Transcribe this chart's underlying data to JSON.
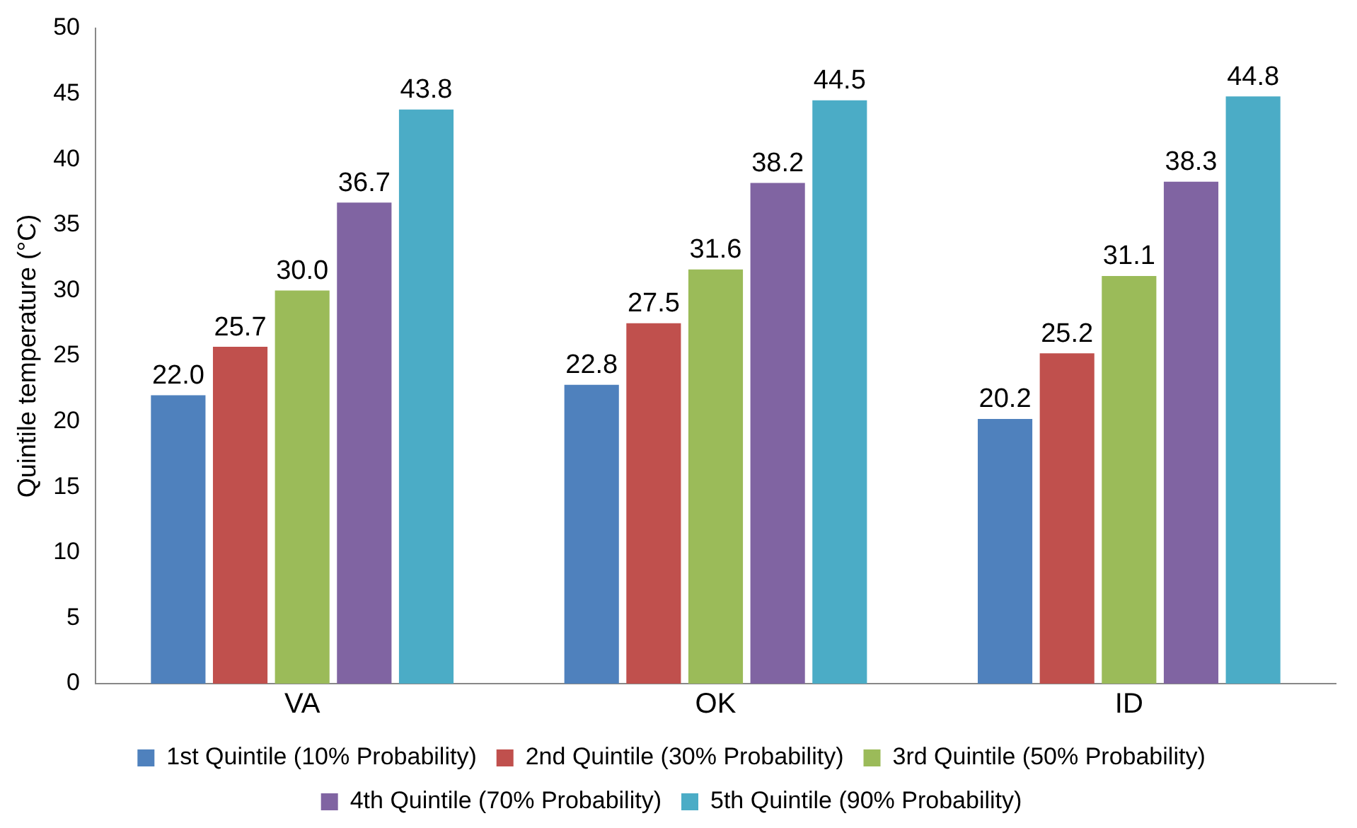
{
  "chart_data": {
    "type": "bar",
    "ylabel": "Quintile temperature (°C)",
    "categories": [
      "VA",
      "OK",
      "ID"
    ],
    "series": [
      {
        "name": "1st Quintile (10% Probability)",
        "color": "#4f81bd",
        "values": [
          22.0,
          22.8,
          20.2
        ],
        "value_labels": [
          "22.0",
          "22.8",
          "20.2"
        ]
      },
      {
        "name": "2nd Quintile (30% Probability)",
        "color": "#c0504d",
        "values": [
          25.7,
          27.5,
          25.2
        ],
        "value_labels": [
          "25.7",
          "27.5",
          "25.2"
        ]
      },
      {
        "name": "3rd Quintile (50% Probability)",
        "color": "#9bbb59",
        "values": [
          30.0,
          31.6,
          31.1
        ],
        "value_labels": [
          "30.0",
          "31.6",
          "31.1"
        ]
      },
      {
        "name": "4th Quintile (70% Probability)",
        "color": "#8064a2",
        "values": [
          36.7,
          38.2,
          38.3
        ],
        "value_labels": [
          "36.7",
          "38.2",
          "38.3"
        ]
      },
      {
        "name": "5th Quintile (90% Probability)",
        "color": "#4bacc6",
        "values": [
          43.8,
          44.5,
          44.8
        ],
        "value_labels": [
          "43.8",
          "44.5",
          "44.8"
        ]
      }
    ],
    "ylim": [
      0,
      50
    ],
    "yticks": [
      0,
      5,
      10,
      15,
      20,
      25,
      30,
      35,
      40,
      45,
      50
    ],
    "grid": false,
    "legend": "bottom"
  }
}
